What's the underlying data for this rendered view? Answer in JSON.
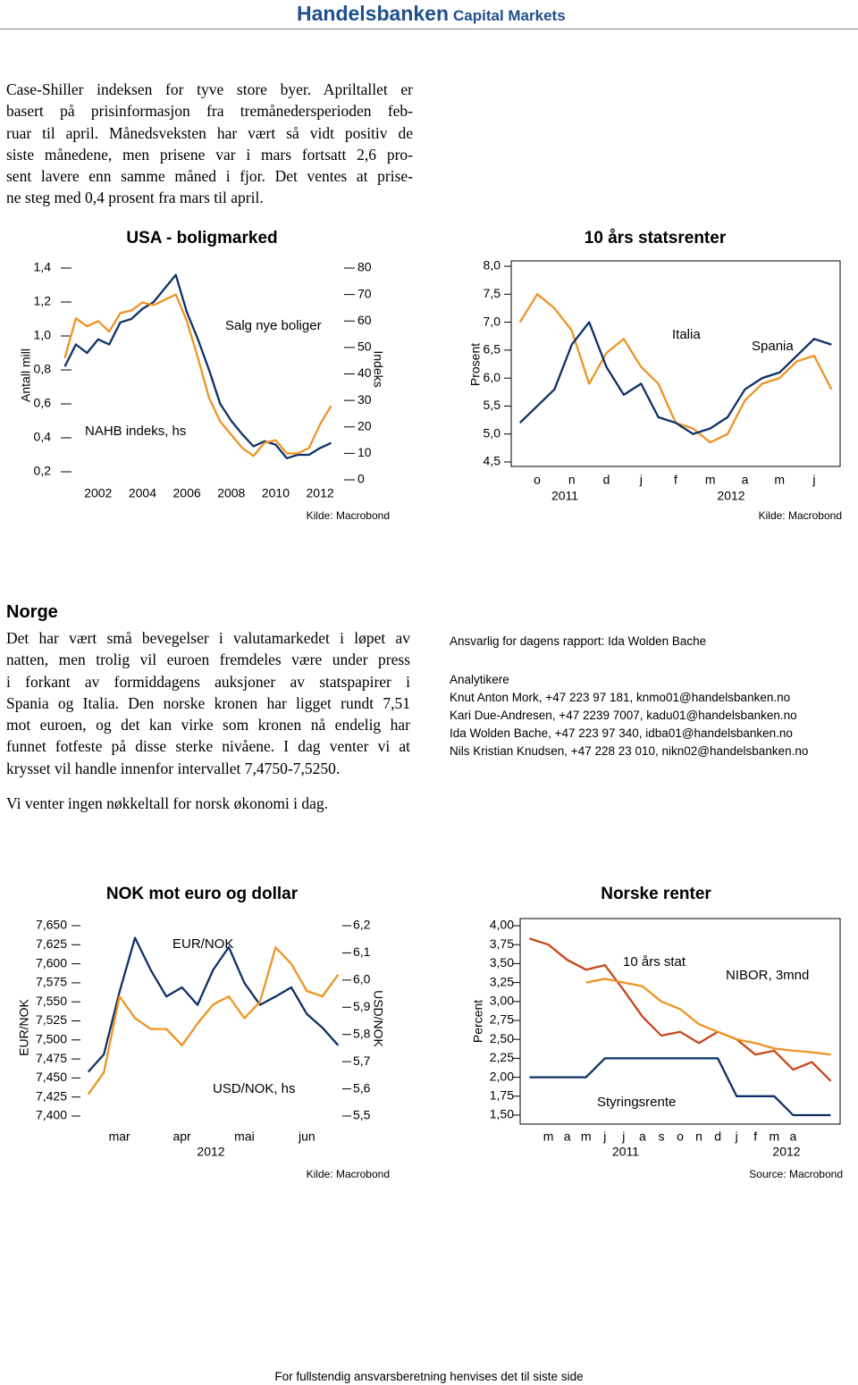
{
  "header": {
    "brand": "Handelsbanken",
    "unit": "Capital Markets"
  },
  "intro": {
    "lines": [
      "Case-Shiller indeksen for tyve store byer. Apriltallet er",
      "basert på prisinformasjon fra tremånedersperioden feb-",
      "ruar til april. Månedsveksten har vært så vidt positiv de",
      "siste månedene, men prisene var i mars fortsatt 2,6 pro-",
      "sent lavere enn samme måned i fjor. Det ventes at prise-",
      "ne steg med 0,4 prosent fra mars til april."
    ]
  },
  "norge": {
    "heading": "Norge",
    "lines": [
      "Det har vært små bevegelser i valutamarkedet i løpet av",
      "natten, men trolig vil euroen fremdeles være under press",
      "i forkant av formiddagens auksjoner av statspapirer i",
      "Spania og Italia. Den norske kronen har ligget rundt 7,51",
      "mot euroen, og det kan virke som kronen nå endelig har",
      "funnet fotfeste på disse sterke nivåene. I dag venter vi at",
      "krysset vil handle innenfor intervallet 7,4750-7,5250."
    ],
    "note": "Vi venter ingen nøkkeltall for norsk økonomi i dag."
  },
  "contacts": {
    "responsible": "Ansvarlig for dagens rapport: Ida Wolden Bache",
    "heading": "Analytikere",
    "analysts": [
      "Knut Anton Mork, +47 223 97 181, knmo01@handelsbanken.no",
      "Kari Due-Andresen, +47 2239 7007, kadu01@handelsbanken.no",
      "Ida Wolden Bache, +47 223 97 340, idba01@handelsbanken.no",
      "Nils Kristian Knudsen, +47 228 23 010, nikn02@handelsbanken.no"
    ]
  },
  "footer": "For fullstendig ansvarsberetning henvises det til siste side",
  "chart_data": [
    {
      "type": "line",
      "title": "USA - boligmarked",
      "y_label": "Antall mill",
      "y2_label": "Indeks",
      "source": "Kilde: Macrobond",
      "x": [
        2000.5,
        2001,
        2001.5,
        2002,
        2002.5,
        2003,
        2003.5,
        2004,
        2004.5,
        2005,
        2005.5,
        2006,
        2006.5,
        2007,
        2007.5,
        2008,
        2008.5,
        2009,
        2009.5,
        2010,
        2010.5,
        2011,
        2011.5,
        2012,
        2012.5
      ],
      "xlim": [
        2000.6,
        2012.6
      ],
      "xticks": [
        2002,
        2004,
        2006,
        2008,
        2010,
        2012
      ],
      "ylim": [
        0.2,
        1.4
      ],
      "yticks": [
        {
          "value": 0.2,
          "label": "0,2"
        },
        {
          "value": 0.4,
          "label": "0,4"
        },
        {
          "value": 0.6,
          "label": "0,6"
        },
        {
          "value": 0.8,
          "label": "0,8"
        },
        {
          "value": 1.0,
          "label": "1,0"
        },
        {
          "value": 1.2,
          "label": "1,2"
        },
        {
          "value": 1.4,
          "label": "1,4"
        }
      ],
      "y2lim": [
        0,
        80
      ],
      "y2ticks": [
        0,
        10,
        20,
        30,
        40,
        50,
        60,
        70,
        80
      ],
      "series": [
        {
          "name": "Salg nye boliger",
          "color": "#0d3166",
          "values": [
            0.82,
            0.95,
            0.9,
            0.98,
            0.95,
            1.08,
            1.1,
            1.16,
            1.2,
            1.28,
            1.36,
            1.14,
            0.98,
            0.8,
            0.6,
            0.5,
            0.42,
            0.35,
            0.38,
            0.36,
            0.28,
            0.3,
            0.3,
            0.34,
            0.37
          ]
        },
        {
          "name": "NAHB indeks, hs",
          "color": "#ee9322",
          "axis": "y2",
          "values": [
            46,
            61,
            58,
            60,
            56,
            63,
            64,
            67,
            66,
            68,
            70,
            60,
            46,
            31,
            22,
            17,
            12,
            9,
            14,
            15,
            10,
            10,
            12,
            21,
            28
          ]
        }
      ]
    },
    {
      "type": "line",
      "title": "10 års statsrenter",
      "y_label": "Prosent",
      "source": "Kilde: Macrobond",
      "categories": [
        null,
        "o",
        null,
        "n",
        null,
        "d",
        null,
        "j",
        null,
        "f",
        null,
        "m",
        null,
        "a",
        null,
        "m",
        null,
        "j",
        null
      ],
      "x_sublabels": [
        "2011",
        "2012"
      ],
      "ylim": [
        4.5,
        8.0
      ],
      "yticks": [
        {
          "value": 4.5,
          "label": "4,5"
        },
        {
          "value": 5.0,
          "label": "5,0"
        },
        {
          "value": 5.5,
          "label": "5,5"
        },
        {
          "value": 6.0,
          "label": "6,0"
        },
        {
          "value": 6.5,
          "label": "6,5"
        },
        {
          "value": 7.0,
          "label": "7,0"
        },
        {
          "value": 7.5,
          "label": "7,5"
        },
        {
          "value": 8.0,
          "label": "8,0"
        }
      ],
      "series": [
        {
          "name": "Italia",
          "color": "#ee9322",
          "values": [
            7.0,
            7.5,
            7.25,
            6.85,
            5.9,
            6.45,
            6.7,
            6.2,
            5.9,
            5.2,
            5.1,
            4.85,
            5.0,
            5.6,
            5.9,
            6.0,
            6.3,
            6.4,
            5.8
          ]
        },
        {
          "name": "Spania",
          "color": "#0d3166",
          "values": [
            5.2,
            5.5,
            5.8,
            6.6,
            7.0,
            6.2,
            5.7,
            5.9,
            5.3,
            5.2,
            5.0,
            5.1,
            5.3,
            5.8,
            6.0,
            6.1,
            6.4,
            6.7,
            6.6
          ]
        }
      ]
    },
    {
      "type": "line",
      "title": "NOK mot euro og dollar",
      "y_label": "EUR/NOK",
      "y2_label": "USD/NOK",
      "source": "Kilde: Macrobond",
      "categories": [
        null,
        null,
        "mar",
        null,
        null,
        null,
        "apr",
        null,
        null,
        null,
        "mai",
        null,
        null,
        null,
        "jun",
        null,
        null
      ],
      "x_sublabels": [
        "2012"
      ],
      "ylim": [
        7.4,
        7.65
      ],
      "yticks": [
        {
          "value": 7.4,
          "label": "7,400"
        },
        {
          "value": 7.425,
          "label": "7,425"
        },
        {
          "value": 7.45,
          "label": "7,450"
        },
        {
          "value": 7.475,
          "label": "7,475"
        },
        {
          "value": 7.5,
          "label": "7,500"
        },
        {
          "value": 7.525,
          "label": "7,525"
        },
        {
          "value": 7.55,
          "label": "7,550"
        },
        {
          "value": 7.575,
          "label": "7,575"
        },
        {
          "value": 7.6,
          "label": "7,600"
        },
        {
          "value": 7.625,
          "label": "7,625"
        },
        {
          "value": 7.65,
          "label": "7,650"
        }
      ],
      "y2lim": [
        5.5,
        6.2
      ],
      "y2ticks": [
        {
          "value": 5.5,
          "label": "5,5"
        },
        {
          "value": 5.6,
          "label": "5,6"
        },
        {
          "value": 5.7,
          "label": "5,7"
        },
        {
          "value": 5.8,
          "label": "5,8"
        },
        {
          "value": 5.9,
          "label": "5,9"
        },
        {
          "value": 6.0,
          "label": "6,0"
        },
        {
          "value": 6.1,
          "label": "6,1"
        },
        {
          "value": 6.2,
          "label": "6,2"
        }
      ],
      "series": [
        {
          "name": "EUR/NOK",
          "color": "#0d3166",
          "values": [
            7.458,
            7.481,
            7.563,
            7.634,
            7.592,
            7.557,
            7.569,
            7.546,
            7.592,
            7.622,
            7.575,
            7.546,
            7.557,
            7.569,
            7.534,
            7.516,
            7.493
          ]
        },
        {
          "name": "USD/NOK, hs",
          "color": "#ee9322",
          "axis": "y2",
          "values": [
            5.58,
            5.66,
            5.94,
            5.86,
            5.82,
            5.82,
            5.76,
            5.84,
            5.91,
            5.94,
            5.86,
            5.92,
            6.12,
            6.06,
            5.96,
            5.94,
            6.02
          ]
        }
      ]
    },
    {
      "type": "line",
      "title": "Norske renter",
      "y_label": "Percent",
      "source": "Source: Macrobond",
      "categories": [
        null,
        "m",
        "a",
        "m",
        "j",
        "j",
        "a",
        "s",
        "o",
        "n",
        "d",
        "j",
        "f",
        "m",
        "a",
        null,
        null
      ],
      "x_sublabels": [
        "2011",
        "2012"
      ],
      "ylim": [
        1.5,
        4.0
      ],
      "yticks": [
        {
          "value": 1.5,
          "label": "1,50"
        },
        {
          "value": 1.75,
          "label": "1,75"
        },
        {
          "value": 2.0,
          "label": "2,00"
        },
        {
          "value": 2.25,
          "label": "2,25"
        },
        {
          "value": 2.5,
          "label": "2,50"
        },
        {
          "value": 2.75,
          "label": "2,75"
        },
        {
          "value": 3.0,
          "label": "3,00"
        },
        {
          "value": 3.25,
          "label": "3,25"
        },
        {
          "value": 3.5,
          "label": "3,50"
        },
        {
          "value": 3.75,
          "label": "3,75"
        },
        {
          "value": 4.0,
          "label": "4,00"
        }
      ],
      "series": [
        {
          "name": "10 års stat",
          "color": "#c8461a",
          "values": [
            3.83,
            3.75,
            3.55,
            3.42,
            3.48,
            3.15,
            2.8,
            2.55,
            2.6,
            2.45,
            2.6,
            2.5,
            2.3,
            2.35,
            2.1,
            2.2,
            1.95
          ]
        },
        {
          "name": "NIBOR, 3mnd",
          "color": "#ee9322",
          "values": [
            null,
            null,
            null,
            3.25,
            3.3,
            3.25,
            3.2,
            3.0,
            2.9,
            2.7,
            2.6,
            2.5,
            2.45,
            2.38,
            2.35,
            2.33,
            2.3
          ]
        },
        {
          "name": "Styringsrente",
          "color": "#0d3166",
          "values": [
            2.0,
            2.0,
            2.0,
            2.0,
            2.25,
            2.25,
            2.25,
            2.25,
            2.25,
            2.25,
            2.25,
            1.75,
            1.75,
            1.75,
            1.5,
            1.5,
            1.5
          ]
        }
      ]
    }
  ]
}
